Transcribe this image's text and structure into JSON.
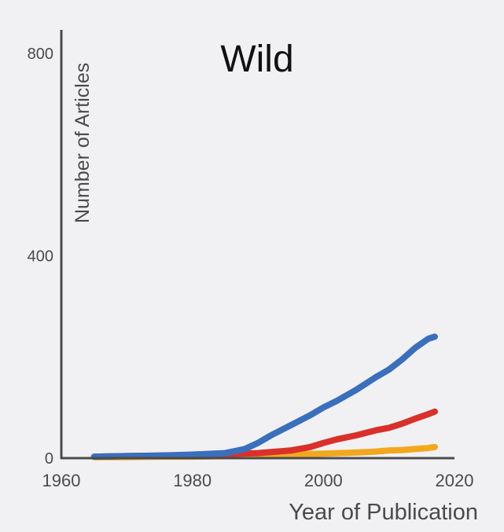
{
  "chart_data": {
    "type": "line",
    "title": "Wild",
    "xlabel": "Year of Publication",
    "ylabel": "Number of Articles",
    "xlim": [
      1960,
      2020
    ],
    "ylim": [
      0,
      800
    ],
    "x_ticks": [
      1960,
      1980,
      2000,
      2020
    ],
    "y_ticks": [
      0,
      400,
      800
    ],
    "grid": false,
    "legend": "none",
    "series": [
      {
        "color": "#3a6fbd",
        "x": [
          1965,
          1970,
          1975,
          1980,
          1985,
          1988,
          1990,
          1992,
          1995,
          1998,
          2000,
          2002,
          2005,
          2008,
          2010,
          2012,
          2014,
          2016,
          2017
        ],
        "values": [
          3,
          4,
          5,
          7,
          10,
          18,
          30,
          45,
          65,
          85,
          100,
          113,
          135,
          160,
          175,
          195,
          218,
          236,
          240
        ]
      },
      {
        "color": "#d9302a",
        "x": [
          1965,
          1970,
          1975,
          1980,
          1985,
          1990,
          1995,
          1998,
          2000,
          2002,
          2005,
          2008,
          2010,
          2012,
          2014,
          2016,
          2017
        ],
        "values": [
          3,
          4,
          5,
          6,
          8,
          10,
          15,
          22,
          30,
          37,
          45,
          55,
          60,
          68,
          78,
          87,
          92
        ]
      },
      {
        "color": "#f2a81e",
        "x": [
          1965,
          1970,
          1975,
          1980,
          1985,
          1990,
          1995,
          2000,
          2005,
          2008,
          2010,
          2012,
          2014,
          2016,
          2017
        ],
        "values": [
          2,
          2,
          3,
          3,
          4,
          5,
          7,
          9,
          11,
          13,
          15,
          16,
          18,
          20,
          22
        ]
      }
    ]
  }
}
